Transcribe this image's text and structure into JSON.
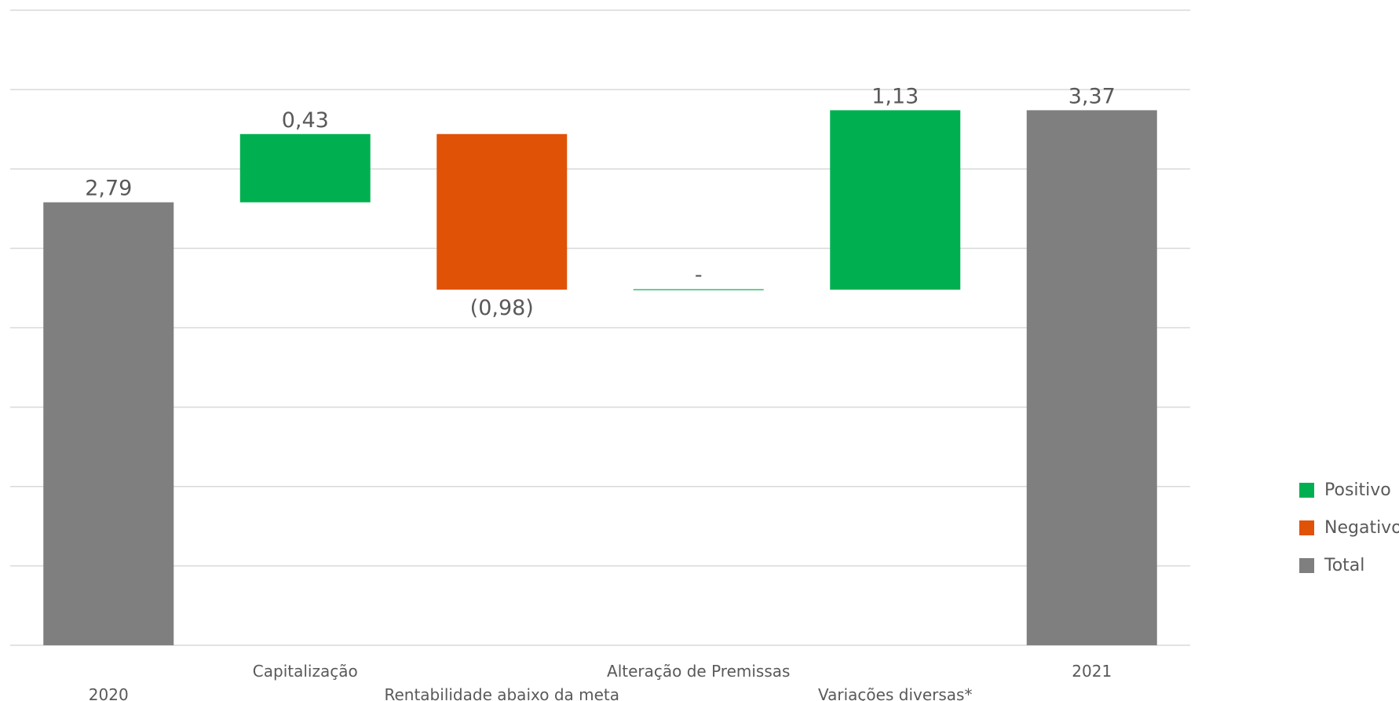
{
  "chart_data": {
    "type": "waterfall",
    "categories": [
      "2020",
      "Capitalização",
      "Rentabilidade abaixo da meta",
      "Alteração de Premissas",
      "Variações diversas*",
      "2021"
    ],
    "steps": [
      {
        "category": "2020",
        "kind": "total",
        "value": 2.79,
        "label": "2,79"
      },
      {
        "category": "Capitalização",
        "kind": "positive",
        "value": 0.43,
        "label": "0,43"
      },
      {
        "category": "Rentabilidade abaixo da meta",
        "kind": "negative",
        "value": -0.98,
        "label": "(0,98)"
      },
      {
        "category": "Alteração de Premissas",
        "kind": "positive",
        "value": 0,
        "label": "-"
      },
      {
        "category": "Variações diversas*",
        "kind": "positive",
        "value": 1.13,
        "label": "1,13"
      },
      {
        "category": "2021",
        "kind": "total",
        "value": 3.37,
        "label": "3,37"
      }
    ],
    "ylim": [
      0,
      4
    ],
    "gridlines": [
      0,
      0.5,
      1,
      1.5,
      2,
      2.5,
      3,
      3.5,
      4
    ],
    "grid": true,
    "legend_position": "right",
    "legend": [
      {
        "name": "Positivo",
        "color": "#00b050"
      },
      {
        "name": "Negativo",
        "color": "#e05206"
      },
      {
        "name": "Total",
        "color": "#7f7f7f"
      }
    ],
    "colors": {
      "positive": "#00b050",
      "negative": "#e05206",
      "total": "#7f7f7f"
    }
  }
}
